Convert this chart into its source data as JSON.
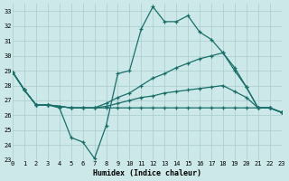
{
  "xlabel": "Humidex (Indice chaleur)",
  "bg_color": "#cce8e8",
  "grid_color": "#aacccc",
  "line_color": "#1a6e6a",
  "xlim": [
    0,
    23
  ],
  "ylim": [
    23,
    33.5
  ],
  "yticks": [
    23,
    24,
    25,
    26,
    27,
    28,
    29,
    30,
    31,
    32,
    33
  ],
  "xticks": [
    0,
    1,
    2,
    3,
    4,
    5,
    6,
    7,
    8,
    9,
    10,
    11,
    12,
    13,
    14,
    15,
    16,
    17,
    18,
    19,
    20,
    21,
    22,
    23
  ],
  "line_dip": {
    "x": [
      0,
      1,
      2,
      3,
      4,
      5,
      6,
      7,
      8,
      9,
      10,
      11,
      12,
      13,
      14,
      15,
      16,
      17,
      18,
      19,
      20,
      21,
      22,
      23
    ],
    "y": [
      28.9,
      27.7,
      26.7,
      26.7,
      26.5,
      24.5,
      24.2,
      23.1,
      25.3,
      28.8,
      29.0,
      31.8,
      33.3,
      32.3,
      32.3,
      32.7,
      31.6,
      31.1,
      30.2,
      29.2,
      27.9,
      26.5,
      26.5,
      26.2
    ]
  },
  "line_high": {
    "x": [
      0,
      1,
      2,
      3,
      4,
      5,
      6,
      7,
      8,
      9,
      10,
      11,
      12,
      13,
      14,
      15,
      16,
      17,
      18,
      19,
      20,
      21,
      22,
      23
    ],
    "y": [
      28.9,
      27.7,
      26.7,
      26.7,
      26.6,
      26.5,
      26.5,
      26.5,
      26.8,
      27.2,
      27.5,
      28.0,
      28.5,
      28.8,
      29.2,
      29.5,
      29.8,
      30.0,
      30.2,
      29.0,
      27.9,
      26.5,
      26.5,
      26.2
    ]
  },
  "line_mid": {
    "x": [
      0,
      1,
      2,
      3,
      4,
      5,
      6,
      7,
      8,
      9,
      10,
      11,
      12,
      13,
      14,
      15,
      16,
      17,
      18,
      19,
      20,
      21,
      22,
      23
    ],
    "y": [
      28.9,
      27.7,
      26.7,
      26.7,
      26.6,
      26.5,
      26.5,
      26.5,
      26.6,
      26.8,
      27.0,
      27.2,
      27.3,
      27.5,
      27.6,
      27.7,
      27.8,
      27.9,
      28.0,
      27.6,
      27.2,
      26.5,
      26.5,
      26.2
    ]
  },
  "line_flat": {
    "x": [
      0,
      1,
      2,
      3,
      4,
      5,
      6,
      7,
      8,
      9,
      10,
      11,
      12,
      13,
      14,
      15,
      16,
      17,
      18,
      19,
      20,
      21,
      22,
      23
    ],
    "y": [
      28.9,
      27.7,
      26.7,
      26.7,
      26.6,
      26.5,
      26.5,
      26.5,
      26.5,
      26.5,
      26.5,
      26.5,
      26.5,
      26.5,
      26.5,
      26.5,
      26.5,
      26.5,
      26.5,
      26.5,
      26.5,
      26.5,
      26.5,
      26.2
    ]
  }
}
